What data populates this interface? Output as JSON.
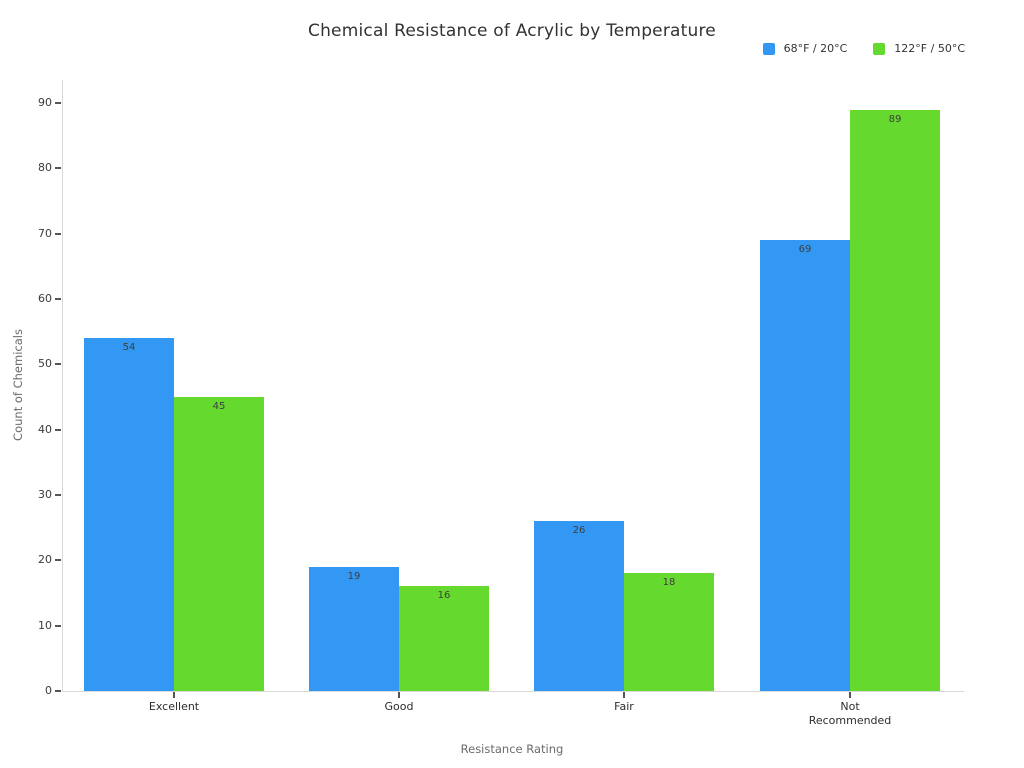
{
  "title": "Chemical Resistance of Acrylic by Temperature",
  "chart_data": {
    "type": "bar",
    "title": "Chemical Resistance of Acrylic by Temperature",
    "categories": [
      "Excellent",
      "Good",
      "Fair",
      "Not Recommended"
    ],
    "series": [
      {
        "name": "68°F / 20°C",
        "color": "#3398f3",
        "values": [
          54,
          19,
          26,
          69
        ]
      },
      {
        "name": "122°F / 50°C",
        "color": "#66d92e",
        "values": [
          45,
          16,
          18,
          89
        ]
      }
    ],
    "xlabel": "Resistance Rating",
    "ylabel": "Count of Chemicals",
    "ylim": [
      0,
      90
    ],
    "ytick_step": 10,
    "ytick_labels": [
      "0",
      "10",
      "20",
      "30",
      "40",
      "50",
      "60",
      "70",
      "80",
      "90"
    ],
    "grid": false,
    "legend_position": "top-right",
    "bar_value_labels": true,
    "value_label_color": "#3e3e3e",
    "axis_line_color": "#d9d9d9"
  }
}
